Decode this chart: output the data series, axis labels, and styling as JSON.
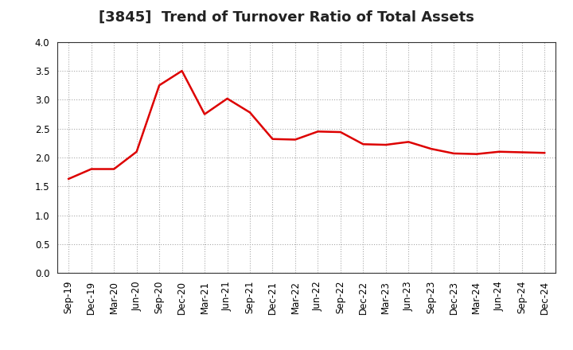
{
  "title": "[3845]  Trend of Turnover Ratio of Total Assets",
  "x_labels": [
    "Sep-19",
    "Dec-19",
    "Mar-20",
    "Jun-20",
    "Sep-20",
    "Dec-20",
    "Mar-21",
    "Jun-21",
    "Sep-21",
    "Dec-21",
    "Mar-22",
    "Jun-22",
    "Sep-22",
    "Dec-22",
    "Mar-23",
    "Jun-23",
    "Sep-23",
    "Dec-23",
    "Mar-24",
    "Jun-24",
    "Sep-24",
    "Dec-24"
  ],
  "y_values": [
    1.63,
    1.8,
    1.8,
    2.1,
    3.25,
    3.5,
    2.75,
    3.02,
    2.78,
    2.32,
    2.31,
    2.45,
    2.44,
    2.23,
    2.22,
    2.27,
    2.15,
    2.07,
    2.06,
    2.1,
    2.09,
    2.08
  ],
  "line_color": "#dd0000",
  "line_width": 1.8,
  "ylim": [
    0.0,
    4.0
  ],
  "yticks": [
    0.0,
    0.5,
    1.0,
    1.5,
    2.0,
    2.5,
    3.0,
    3.5,
    4.0
  ],
  "background_color": "#ffffff",
  "plot_bg_color": "#ffffff",
  "grid_color": "#aaaaaa",
  "title_fontsize": 13,
  "tick_fontsize": 8.5
}
